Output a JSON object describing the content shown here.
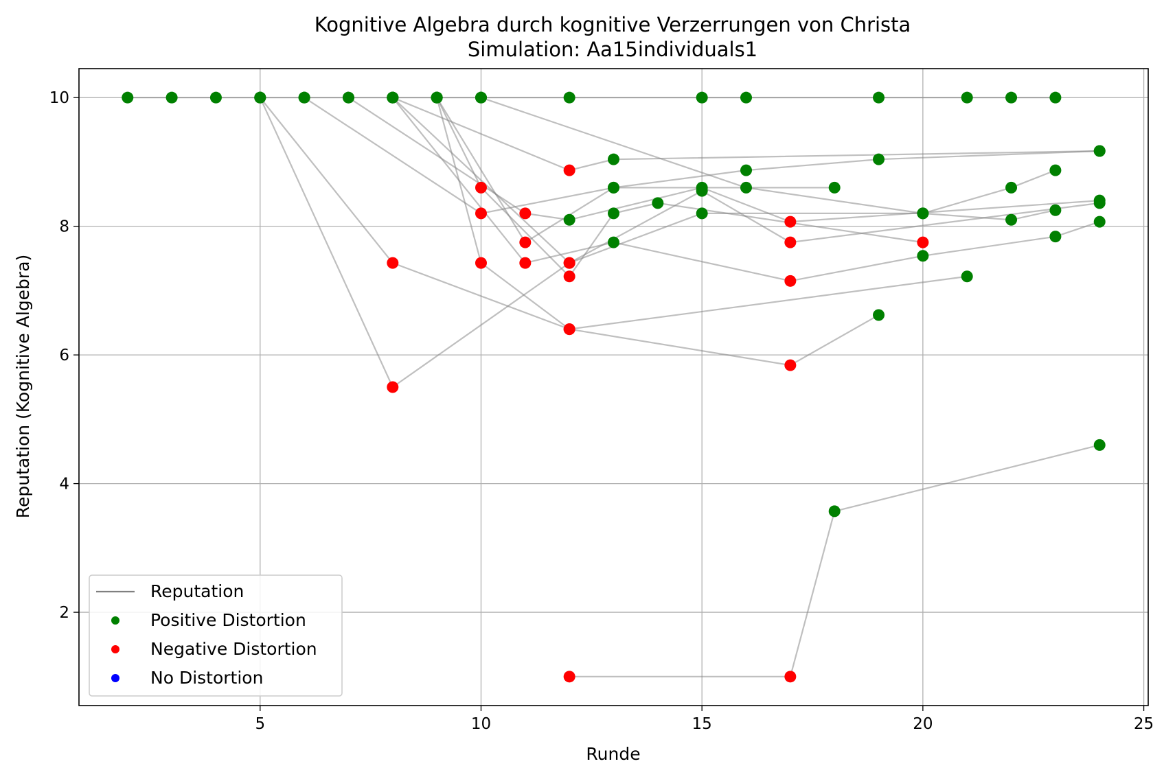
{
  "chart_data": {
    "type": "scatter",
    "title": "Kognitive Algebra durch kognitive Verzerrungen von Christa",
    "subtitle": "Simulation: Aa15individuals1",
    "xlabel": "Runde",
    "ylabel": "Reputation (Kognitive Algebra)",
    "xlim": [
      0.9,
      25.1
    ],
    "ylim": [
      0.55,
      10.45
    ],
    "x_ticks": [
      5,
      10,
      15,
      20,
      25
    ],
    "y_ticks": [
      2,
      4,
      6,
      8,
      10
    ],
    "x_tick_labels": [
      "5",
      "10",
      "15",
      "20",
      "25"
    ],
    "y_tick_labels": [
      "2",
      "4",
      "6",
      "8",
      "10"
    ],
    "grid": true,
    "legend_position": "lower left",
    "legend": [
      {
        "label": "Reputation",
        "marker": "line",
        "color": "#808080"
      },
      {
        "label": "Positive Distortion",
        "marker": "dot",
        "color": "#008000"
      },
      {
        "label": "Negative Distortion",
        "marker": "dot",
        "color": "#ff0000"
      },
      {
        "label": "No Distortion",
        "marker": "dot",
        "color": "#0000ff"
      }
    ],
    "colors": {
      "positive": "#008000",
      "negative": "#ff0000",
      "none": "#0000ff",
      "line": "#808080"
    },
    "series": [
      {
        "points": [
          [
            2,
            10
          ],
          [
            3,
            10
          ],
          [
            4,
            10
          ],
          [
            5,
            10
          ],
          [
            6,
            10
          ],
          [
            7,
            10
          ],
          [
            8,
            10
          ],
          [
            9,
            10
          ],
          [
            10,
            10
          ],
          [
            12,
            10
          ],
          [
            15,
            10
          ],
          [
            16,
            10
          ],
          [
            19,
            10
          ],
          [
            21,
            10
          ],
          [
            22,
            10
          ],
          [
            23,
            10
          ]
        ],
        "types": [
          "p",
          "p",
          "p",
          "p",
          "p",
          "p",
          "p",
          "p",
          "p",
          "p",
          "p",
          "p",
          "p",
          "p",
          "p",
          "p"
        ]
      },
      {
        "points": [
          [
            5,
            10
          ],
          [
            8,
            5.5
          ],
          [
            12,
            7.43
          ],
          [
            15,
            8.55
          ],
          [
            17,
            7.75
          ],
          [
            24,
            8.36
          ]
        ],
        "types": [
          "p",
          "n",
          "n",
          "p",
          "n",
          "p"
        ]
      },
      {
        "points": [
          [
            5,
            10
          ],
          [
            8,
            7.43
          ],
          [
            12,
            6.4
          ],
          [
            17,
            5.84
          ],
          [
            19,
            6.62
          ]
        ],
        "types": [
          "p",
          "n",
          "n",
          "n",
          "p"
        ]
      },
      {
        "points": [
          [
            6,
            10
          ],
          [
            10,
            8.2
          ],
          [
            13,
            8.6
          ],
          [
            18,
            8.6
          ]
        ],
        "types": [
          "p",
          "n",
          "p",
          "p"
        ]
      },
      {
        "points": [
          [
            7,
            10
          ],
          [
            11,
            8.2
          ],
          [
            12,
            8.1
          ],
          [
            15,
            8.6
          ],
          [
            17,
            8.07
          ],
          [
            24,
            8.4
          ]
        ],
        "types": [
          "p",
          "n",
          "p",
          "p",
          "n",
          "p"
        ]
      },
      {
        "points": [
          [
            8,
            10
          ],
          [
            11,
            7.43
          ],
          [
            13,
            7.75
          ],
          [
            17,
            7.15
          ],
          [
            20,
            7.54
          ],
          [
            23,
            7.84
          ],
          [
            24,
            8.07
          ]
        ],
        "types": [
          "p",
          "n",
          "p",
          "n",
          "p",
          "p",
          "p"
        ]
      },
      {
        "points": [
          [
            8,
            10
          ],
          [
            12,
            8.87
          ],
          [
            13,
            9.04
          ],
          [
            24,
            9.17
          ]
        ],
        "types": [
          "p",
          "n",
          "p",
          "p"
        ]
      },
      {
        "points": [
          [
            9,
            10
          ],
          [
            10,
            7.43
          ],
          [
            12,
            6.4
          ],
          [
            21,
            7.22
          ]
        ],
        "types": [
          "p",
          "n",
          "n",
          "p"
        ]
      },
      {
        "points": [
          [
            9,
            10
          ],
          [
            10,
            8.6
          ],
          [
            12,
            7.22
          ],
          [
            13,
            8.2
          ],
          [
            14,
            8.36
          ],
          [
            20,
            7.75
          ]
        ],
        "types": [
          "p",
          "n",
          "n",
          "p",
          "p",
          "n"
        ]
      },
      {
        "points": [
          [
            9,
            10
          ],
          [
            11,
            7.75
          ],
          [
            13,
            8.6
          ],
          [
            16,
            8.87
          ],
          [
            19,
            9.04
          ],
          [
            24,
            9.17
          ]
        ],
        "types": [
          "p",
          "n",
          "p",
          "p",
          "p",
          "p"
        ]
      },
      {
        "points": [
          [
            8,
            10
          ],
          [
            12,
            7.43
          ],
          [
            15,
            8.2
          ],
          [
            20,
            8.2
          ],
          [
            22,
            8.6
          ],
          [
            23,
            8.87
          ]
        ],
        "types": [
          "p",
          "n",
          "p",
          "p",
          "p",
          "p"
        ]
      },
      {
        "points": [
          [
            10,
            10
          ],
          [
            16,
            8.6
          ],
          [
            20,
            8.2
          ],
          [
            22,
            8.1
          ],
          [
            23,
            8.25
          ]
        ],
        "types": [
          "p",
          "p",
          "p",
          "p",
          "p"
        ]
      },
      {
        "points": [
          [
            12,
            1
          ],
          [
            17,
            1
          ],
          [
            18,
            3.57
          ],
          [
            24,
            4.6
          ]
        ],
        "types": [
          "n",
          "n",
          "p",
          "p"
        ]
      }
    ]
  }
}
